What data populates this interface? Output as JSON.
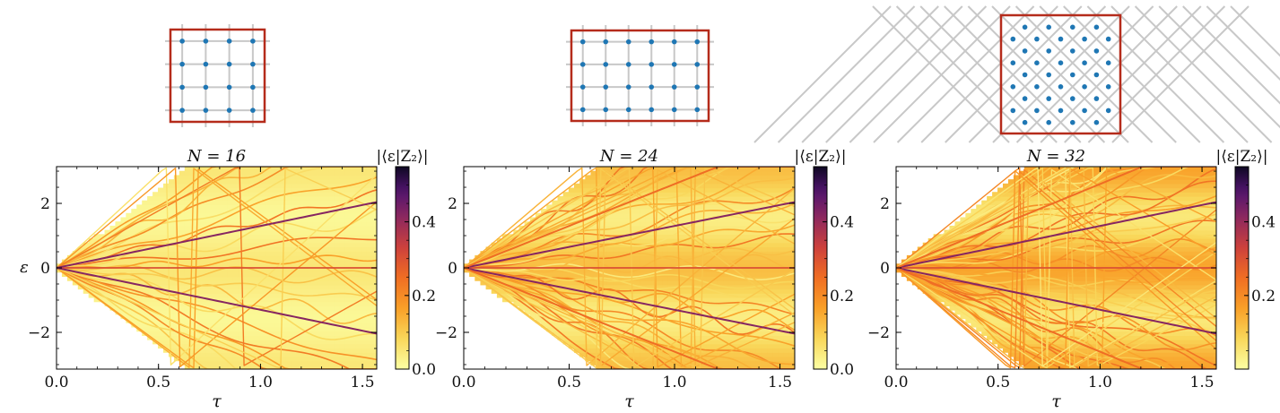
{
  "figure": {
    "colorbar_label": "|⟨ε|Z₂⟩|",
    "y_axis_label": "ε",
    "x_axis_label": "τ",
    "lattice_colors": {
      "frame": "#b52b1b",
      "site": "#1f77b4",
      "bond": "#c8c8c8"
    }
  },
  "chart_data": [
    {
      "type": "heatmap",
      "title": "N = 16",
      "xlabel": "τ",
      "ylabel": "ε",
      "xlim": [
        0.0,
        1.57
      ],
      "ylim": [
        -3.14,
        3.14
      ],
      "xticks": [
        0.0,
        0.5,
        1.0,
        1.5
      ],
      "yticks": [
        -2,
        0,
        2
      ],
      "colorbar": {
        "label": "|⟨ε|Z₂⟩|",
        "range": [
          0.0,
          0.55
        ],
        "ticks": [
          0.0,
          0.2,
          0.4
        ]
      },
      "colormap": "inferno_r",
      "inset_lattice": {
        "kind": "square",
        "rows": 4,
        "cols": 4,
        "sites": 16
      },
      "bright_branch_slopes": [
        0,
        1.3,
        -1.3
      ],
      "line_count": 20,
      "background_density": 0.05
    },
    {
      "type": "heatmap",
      "title": "N = 24",
      "xlabel": "τ",
      "ylabel": "",
      "xlim": [
        0.0,
        1.57
      ],
      "ylim": [
        -3.14,
        3.14
      ],
      "xticks": [
        0.0,
        0.5,
        1.0,
        1.5
      ],
      "yticks": [
        -2,
        0,
        2
      ],
      "colorbar": {
        "label": "|⟨ε|Z₂⟩|",
        "range": [
          0.0,
          0.55
        ],
        "ticks": [
          0.0,
          0.2,
          0.4
        ]
      },
      "colormap": "inferno_r",
      "inset_lattice": {
        "kind": "square",
        "rows": 4,
        "cols": 6,
        "sites": 24
      },
      "bright_branch_slopes": [
        0,
        1.3,
        -1.3,
        2.6,
        -2.6
      ],
      "line_count": 34,
      "background_density": 0.12
    },
    {
      "type": "heatmap",
      "title": "N = 32",
      "xlabel": "τ",
      "ylabel": "",
      "xlim": [
        0.0,
        1.57
      ],
      "ylim": [
        -3.14,
        3.14
      ],
      "xticks": [
        0.0,
        0.5,
        1.0,
        1.5
      ],
      "yticks": [
        -2,
        0,
        2
      ],
      "colorbar": {
        "label": "|⟨ε|Z₂⟩|",
        "range": [
          0.0,
          0.55
        ],
        "ticks": [
          0.2,
          0.4
        ]
      },
      "colormap": "inferno_r",
      "inset_lattice": {
        "kind": "tilted",
        "size": 5,
        "sites": 32
      },
      "bright_branch_slopes": [
        0,
        1.3,
        -1.3,
        2.6,
        -2.6
      ],
      "line_count": 44,
      "background_density": 0.16
    }
  ]
}
